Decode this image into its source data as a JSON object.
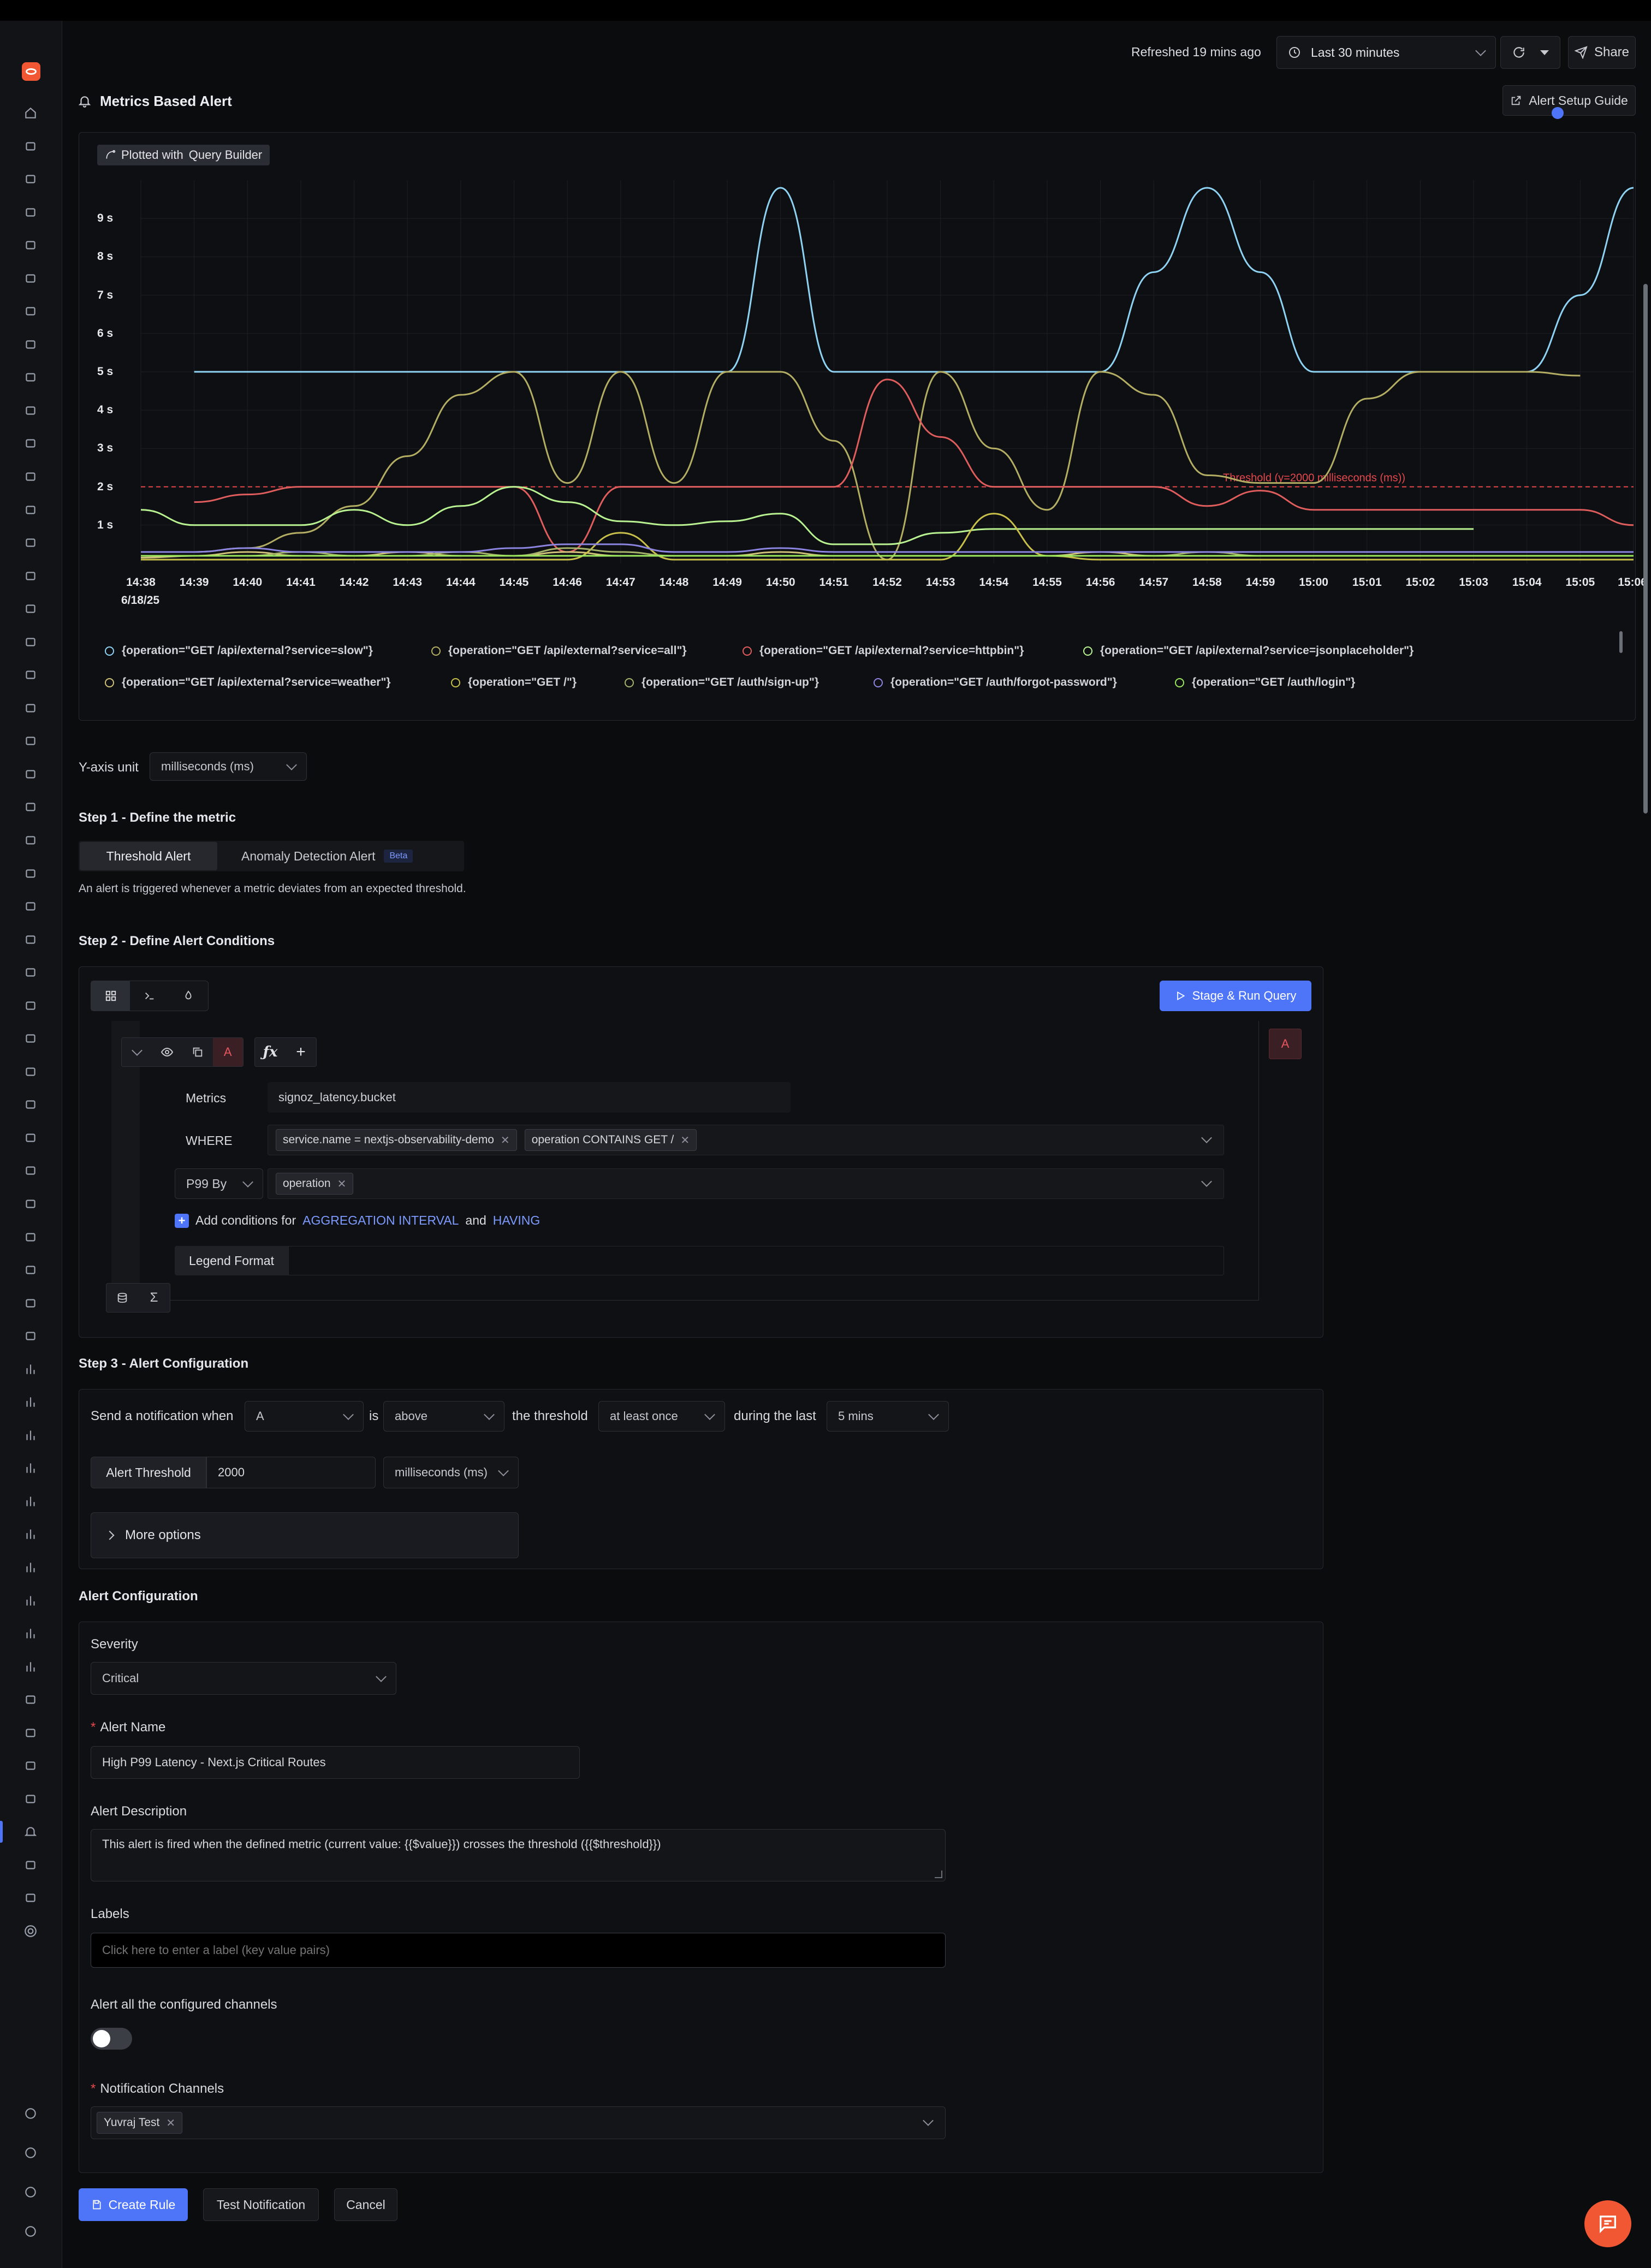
{
  "header": {
    "refreshed": "Refreshed 19 mins ago",
    "time_range": "Last 30 minutes",
    "share": "Share",
    "page_title": "Metrics Based Alert",
    "setup_guide": "Alert Setup Guide"
  },
  "chart": {
    "plotted_with_prefix": "Plotted with",
    "plotted_with_tool": "Query Builder",
    "date_label": "6/18/25",
    "threshold_label": "Threshold (y=2000 milliseconds (ms))"
  },
  "chart_data": {
    "type": "line",
    "x": [
      "14:38",
      "14:39",
      "14:40",
      "14:41",
      "14:42",
      "14:43",
      "14:44",
      "14:45",
      "14:46",
      "14:47",
      "14:48",
      "14:49",
      "14:50",
      "14:51",
      "14:52",
      "14:53",
      "14:54",
      "14:55",
      "14:56",
      "14:57",
      "14:58",
      "14:59",
      "15:00",
      "15:01",
      "15:02",
      "15:03",
      "15:04",
      "15:05",
      "15:06"
    ],
    "y_ticks": [
      "1 s",
      "2 s",
      "3 s",
      "4 s",
      "5 s",
      "6 s",
      "7 s",
      "8 s",
      "9 s"
    ],
    "ylim": [
      0,
      10
    ],
    "y_unit": "s",
    "threshold": 2,
    "grid": true,
    "legend_position": "bottom",
    "series": [
      {
        "name": "{operation=\"GET /api/external?service=slow\"}",
        "color": "#8fd3f4",
        "values": [
          null,
          5,
          5,
          5,
          5,
          5,
          5,
          5,
          5,
          5,
          5,
          5,
          9.8,
          5,
          5,
          5,
          5,
          5,
          5,
          7.6,
          9.8,
          7.6,
          5,
          5,
          5,
          5,
          5,
          7,
          9.8
        ]
      },
      {
        "name": "{operation=\"GET /api/external?service=all\"}",
        "color": "#b3ae63",
        "values": [
          null,
          0.3,
          0.4,
          0.8,
          1.5,
          2.8,
          4.4,
          5,
          2.1,
          5,
          2.1,
          5,
          5,
          3.2,
          0.1,
          5,
          3,
          1.4,
          5,
          4.4,
          2.3,
          2.1,
          2.1,
          4.3,
          5,
          5,
          5,
          4.9,
          null
        ]
      },
      {
        "name": "{operation=\"GET /api/external?service=httpbin\"}",
        "color": "#e05d5d",
        "values": [
          null,
          1.6,
          1.8,
          2,
          2,
          2,
          2,
          2,
          0.3,
          2,
          2,
          2,
          2,
          2,
          4.8,
          3.3,
          2,
          2,
          2,
          2,
          1.5,
          1.9,
          1.4,
          1.4,
          1.4,
          1.4,
          1.4,
          1.4,
          1
        ]
      },
      {
        "name": "{operation=\"GET /api/external?service=jsonplaceholder\"}",
        "color": "#b9f291",
        "values": [
          1.4,
          1,
          1,
          1,
          1.4,
          1,
          1.5,
          2,
          1.6,
          1.1,
          1,
          1.1,
          1.3,
          0.5,
          0.5,
          0.8,
          0.9,
          0.9,
          0.9,
          0.9,
          0.9,
          0.9,
          0.9,
          0.9,
          0.9,
          0.9,
          null,
          null,
          null
        ]
      },
      {
        "name": "{operation=\"GET /api/external?service=weather\"}",
        "color": "#d1c27a",
        "values": [
          0.15,
          0.2,
          0.3,
          0.2,
          0.2,
          0.3,
          0.2,
          0.2,
          0.3,
          0.2,
          0.2,
          0.2,
          0.3,
          0.2,
          0.2,
          0.2,
          0.2,
          0.2,
          0.3,
          0.2,
          0.2,
          0.2,
          0.2,
          0.2,
          0.2,
          0.2,
          0.2,
          0.2,
          0.2
        ]
      },
      {
        "name": "{operation=\"GET /\"}",
        "color": "#c8c04a",
        "values": [
          0.1,
          0.1,
          0.1,
          0.1,
          0.1,
          0.1,
          0.1,
          0.1,
          0.1,
          0.8,
          0.1,
          0.1,
          0.1,
          0.1,
          0.1,
          0.1,
          1.3,
          0.2,
          0.1,
          0.1,
          0.1,
          0.1,
          0.1,
          0.1,
          0.1,
          0.1,
          0.1,
          0.1,
          0.1
        ]
      },
      {
        "name": "{operation=\"GET /auth/sign-up\"}",
        "color": "#a6b36a",
        "values": [
          0.2,
          0.2,
          0.2,
          0.3,
          0.2,
          0.2,
          0.3,
          0.2,
          0.4,
          0.3,
          0.2,
          0.2,
          0.2,
          0.2,
          0.2,
          0.2,
          0.2,
          0.2,
          0.2,
          0.2,
          0.3,
          0.2,
          0.2,
          0.2,
          0.2,
          0.2,
          0.2,
          0.2,
          0.2
        ]
      },
      {
        "name": "{operation=\"GET /auth/forgot-password\"}",
        "color": "#8b84e0",
        "values": [
          0.3,
          0.3,
          0.4,
          0.3,
          0.3,
          0.3,
          0.3,
          0.4,
          0.5,
          0.5,
          0.3,
          0.3,
          0.4,
          0.3,
          0.3,
          0.3,
          0.3,
          0.3,
          0.3,
          0.3,
          0.3,
          0.3,
          0.3,
          0.3,
          0.3,
          0.3,
          0.3,
          0.3,
          0.3
        ]
      },
      {
        "name": "{operation=\"GET /auth/login\"}",
        "color": "#9be85e",
        "values": [
          0.2,
          0.2,
          0.2,
          0.2,
          0.2,
          0.2,
          0.2,
          0.2,
          0.2,
          0.2,
          0.2,
          0.2,
          0.2,
          0.2,
          0.2,
          0.2,
          0.2,
          0.2,
          0.2,
          0.2,
          0.2,
          0.2,
          0.2,
          0.2,
          0.2,
          0.2,
          0.2,
          0.2,
          0.2
        ]
      }
    ]
  },
  "y_axis": {
    "label": "Y-axis unit",
    "value": "milliseconds (ms)"
  },
  "step1": {
    "title": "Step 1 - Define the metric",
    "tab_threshold": "Threshold Alert",
    "tab_anomaly": "Anomaly Detection Alert",
    "beta": "Beta",
    "description": "An alert is triggered whenever a metric deviates from an expected threshold."
  },
  "step2": {
    "title": "Step 2 - Define Alert Conditions",
    "run_query": "Stage & Run Query",
    "query_letter": "A",
    "metrics_label": "Metrics",
    "metrics_value": "signoz_latency.bucket",
    "where_label": "WHERE",
    "where_tags": [
      "service.name = nextjs-observability-demo",
      "operation CONTAINS GET /"
    ],
    "agg_select": "P99 By",
    "groupby_tag": "operation",
    "add_conditions_prefix": "Add conditions for",
    "aggregation_interval": "AGGREGATION INTERVAL",
    "and": "and",
    "having": "HAVING",
    "legend_format": "Legend Format"
  },
  "step3": {
    "title": "Step 3 - Alert Configuration",
    "send_when": "Send a notification when",
    "query_select": "A",
    "is": "is",
    "op_select": "above",
    "the_threshold": "the threshold",
    "match_select": "at least once",
    "during_last": "during the last",
    "window_select": "5 mins",
    "threshold_label": "Alert Threshold",
    "threshold_value": "2000",
    "threshold_unit": "milliseconds (ms)",
    "more_options": "More options"
  },
  "config": {
    "title": "Alert Configuration",
    "severity_label": "Severity",
    "severity_value": "Critical",
    "name_label": "Alert Name",
    "name_value": "High P99 Latency - Next.js Critical Routes",
    "desc_label": "Alert Description",
    "desc_value": "This alert is fired when the defined metric (current value: {{$value}}) crosses the threshold ({{$threshold}})",
    "labels_label": "Labels",
    "labels_placeholder": "Click here to enter a label (key value pairs)",
    "all_channels_label": "Alert all the configured channels",
    "channels_label": "Notification Channels",
    "channel_tag": "Yuvraj Test"
  },
  "footer": {
    "create": "Create Rule",
    "test": "Test Notification",
    "cancel": "Cancel"
  },
  "colors": {
    "accent": "#4e74f8",
    "threshold": "#e5484d",
    "brand": "#f25733"
  }
}
